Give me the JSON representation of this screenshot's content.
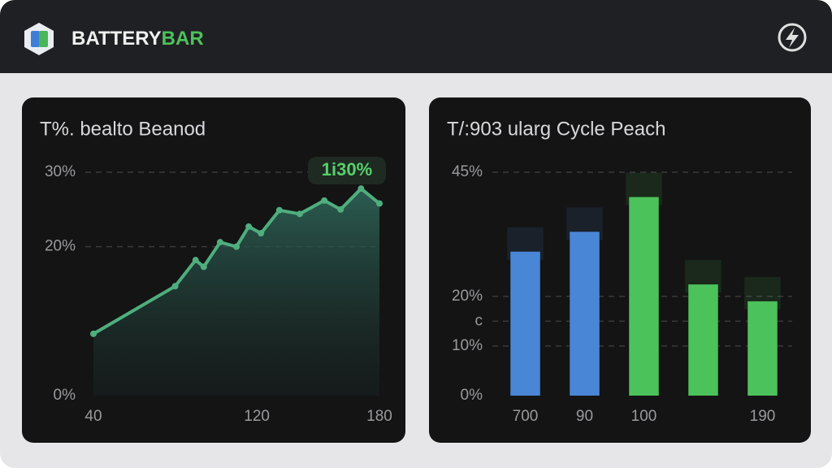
{
  "header": {
    "brand": [
      "BATTERY",
      "BAR"
    ]
  },
  "chart_data": [
    {
      "type": "line",
      "title": "T%. bealto Beanod",
      "annotation": "1i30%",
      "x": [
        40,
        80,
        90,
        94,
        102,
        110,
        116,
        122,
        131,
        141,
        153,
        161,
        171,
        180
      ],
      "values": [
        8.3,
        14.7,
        18.2,
        17.3,
        20.6,
        20,
        22.7,
        21.8,
        24.9,
        24.4,
        26.2,
        25,
        27.8,
        25.8
      ],
      "color": "#4fae7e",
      "xlim": [
        40,
        180
      ],
      "xticks": [
        40,
        120,
        180
      ],
      "ylim": [
        0,
        30
      ],
      "yticks": [
        {
          "value": 0,
          "label": "0%"
        },
        {
          "value": 20,
          "label": "20%"
        },
        {
          "value": 30,
          "label": "30%"
        }
      ],
      "grid": true
    },
    {
      "type": "bar",
      "title": "T/:903 ularg Cycle Peach",
      "categories": [
        "700",
        "90",
        "100",
        null,
        "190"
      ],
      "values": [
        29,
        33,
        40,
        22.4,
        19
      ],
      "colors": [
        "#4a86d6",
        "#4a86d6",
        "#4cc25a",
        "#4cc25a",
        "#4cc25a"
      ],
      "ylim": [
        0,
        45
      ],
      "yticks": [
        {
          "value": 0,
          "label": "0%"
        },
        {
          "value": 10,
          "label": "10%"
        },
        {
          "value": 15,
          "label": "c"
        },
        {
          "value": 20,
          "label": "20%"
        },
        {
          "value": 45,
          "label": "45%"
        }
      ],
      "grid": true
    }
  ]
}
